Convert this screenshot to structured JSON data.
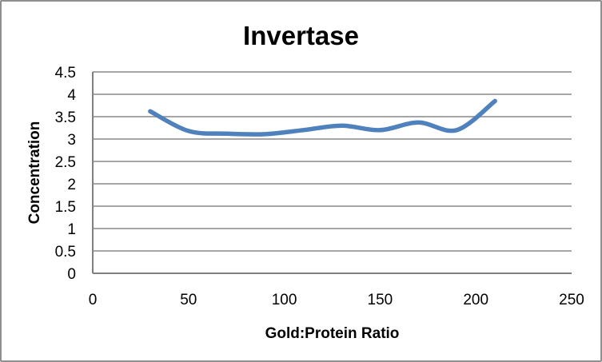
{
  "chart_data": {
    "type": "line",
    "title": "Invertase",
    "xlabel": "Gold:Protein Ratio",
    "ylabel": "Concentration",
    "series": [
      {
        "name": "Invertase",
        "x": [
          30,
          50,
          70,
          90,
          110,
          130,
          150,
          170,
          190,
          210
        ],
        "y": [
          3.62,
          3.18,
          3.12,
          3.11,
          3.2,
          3.3,
          3.2,
          3.37,
          3.2,
          3.85
        ]
      }
    ],
    "xlim": [
      0,
      250
    ],
    "ylim": [
      0,
      4.5
    ],
    "x_ticks": [
      0,
      50,
      100,
      150,
      200,
      250
    ],
    "y_ticks": [
      0,
      0.5,
      1,
      1.5,
      2,
      2.5,
      3,
      3.5,
      4,
      4.5
    ],
    "smooth": true,
    "grid": "horizontal",
    "legend_position": "none",
    "line_color": "#4F81BD",
    "gridline_color": "#A6A6A6",
    "axis_color": "#808080",
    "text_color": "#000000",
    "background_color": "#FFFFFF",
    "border_color": "#8F8F8F"
  }
}
